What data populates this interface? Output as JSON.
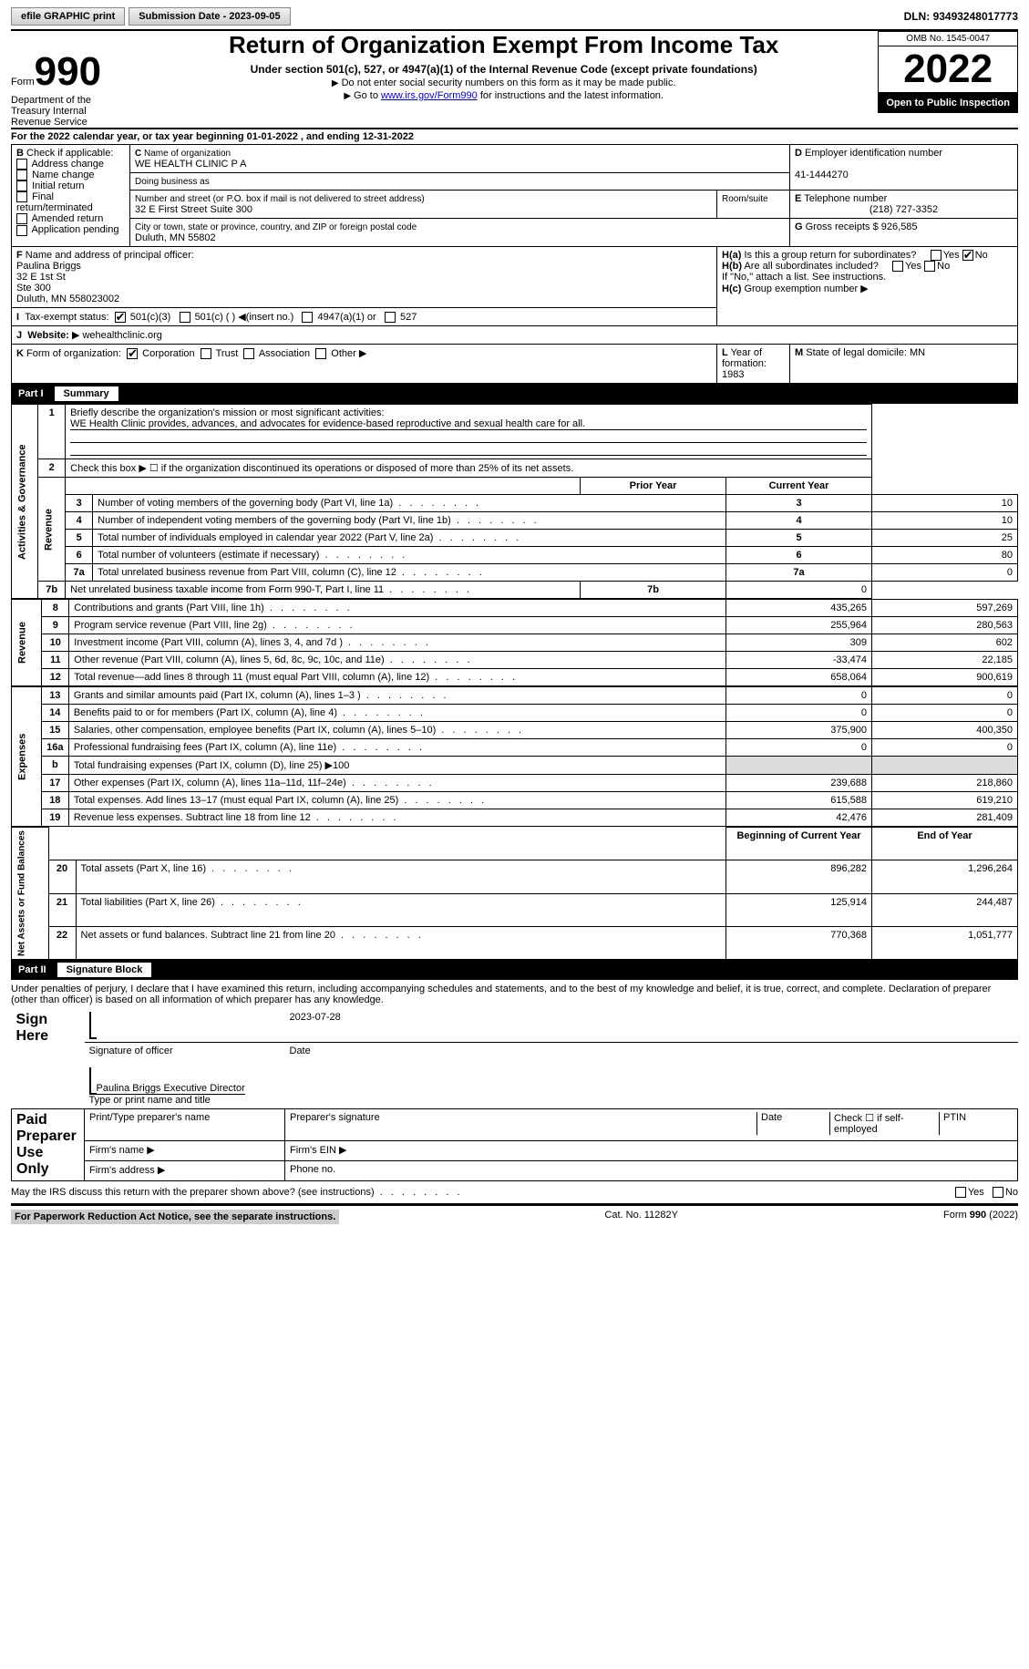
{
  "topbar": {
    "efile": "efile GRAPHIC print",
    "sub_label": "Submission Date - ",
    "sub_date": "2023-09-05",
    "dln_label": "DLN: ",
    "dln": "93493248017773"
  },
  "header": {
    "form_prefix": "Form",
    "form_num": "990",
    "title": "Return of Organization Exempt From Income Tax",
    "subtitle": "Under section 501(c), 527, or 4947(a)(1) of the Internal Revenue Code (except private foundations)",
    "note1": "Do not enter social security numbers on this form as it may be made public.",
    "note2_pre": "Go to ",
    "note2_link": "www.irs.gov/Form990",
    "note2_post": " for instructions and the latest information.",
    "omb": "OMB No. 1545-0047",
    "year": "2022",
    "open": "Open to Public Inspection",
    "dept": "Department of the Treasury Internal Revenue Service"
  },
  "sectionA": {
    "line": "For the 2022 calendar year, or tax year beginning 01-01-2022  , and ending 12-31-2022",
    "b_label": "Check if applicable:",
    "b_opts": [
      "Address change",
      "Name change",
      "Initial return",
      "Final return/terminated",
      "Amended return",
      "Application pending"
    ],
    "c_label": "Name of organization",
    "c_name": "WE HEALTH CLINIC P A",
    "dba": "Doing business as",
    "addr_label": "Number and street (or P.O. box if mail is not delivered to street address)",
    "addr": "32 E First Street Suite 300",
    "room": "Room/suite",
    "city_label": "City or town, state or province, country, and ZIP or foreign postal code",
    "city": "Duluth, MN  55802",
    "d_label": "Employer identification number",
    "d_val": "41-1444270",
    "e_label": "Telephone number",
    "e_val": "(218) 727-3352",
    "g_label": "Gross receipts $",
    "g_val": "926,585",
    "f_label": "Name and address of principal officer:",
    "f_name": "Paulina Briggs",
    "f_addr": "32 E 1st St\nSte 300\nDuluth, MN  558023002",
    "ha": "Is this a group return for subordinates?",
    "hb": "Are all subordinates included?",
    "h_note": "If \"No,\" attach a list. See instructions.",
    "hc": "Group exemption number",
    "i_label": "Tax-exempt status:",
    "i_501c3": "501(c)(3)",
    "i_501c": "501(c) (  )",
    "i_insert": "(insert no.)",
    "i_4947": "4947(a)(1) or",
    "i_527": "527",
    "j_label": "Website:",
    "j_val": "wehealthclinic.org",
    "k_label": "Form of organization:",
    "k_corp": "Corporation",
    "k_trust": "Trust",
    "k_assoc": "Association",
    "k_other": "Other",
    "l_label": "Year of formation:",
    "l_val": "1983",
    "m_label": "State of legal domicile:",
    "m_val": "MN"
  },
  "part1": {
    "hdr": "Part I",
    "title": "Summary",
    "q1": "Briefly describe the organization's mission or most significant activities:",
    "mission": "WE Health Clinic provides, advances, and advocates for evidence-based reproductive and sexual health care for all.",
    "q2": "Check this box ▶ ☐ if the organization discontinued its operations or disposed of more than 25% of its net assets.",
    "rows_gov": [
      {
        "n": "3",
        "t": "Number of voting members of the governing body (Part VI, line 1a)",
        "v": "10"
      },
      {
        "n": "4",
        "t": "Number of independent voting members of the governing body (Part VI, line 1b)",
        "v": "10"
      },
      {
        "n": "5",
        "t": "Total number of individuals employed in calendar year 2022 (Part V, line 2a)",
        "v": "25"
      },
      {
        "n": "6",
        "t": "Total number of volunteers (estimate if necessary)",
        "v": "80"
      },
      {
        "n": "7a",
        "t": "Total unrelated business revenue from Part VIII, column (C), line 12",
        "v": "0"
      },
      {
        "n": "7b",
        "t": "Net unrelated business taxable income from Form 990-T, Part I, line 11",
        "v": "0"
      }
    ],
    "col_prior": "Prior Year",
    "col_curr": "Current Year",
    "rows_rev": [
      {
        "n": "8",
        "t": "Contributions and grants (Part VIII, line 1h)",
        "p": "435,265",
        "c": "597,269"
      },
      {
        "n": "9",
        "t": "Program service revenue (Part VIII, line 2g)",
        "p": "255,964",
        "c": "280,563"
      },
      {
        "n": "10",
        "t": "Investment income (Part VIII, column (A), lines 3, 4, and 7d )",
        "p": "309",
        "c": "602"
      },
      {
        "n": "11",
        "t": "Other revenue (Part VIII, column (A), lines 5, 6d, 8c, 9c, 10c, and 11e)",
        "p": "-33,474",
        "c": "22,185"
      },
      {
        "n": "12",
        "t": "Total revenue—add lines 8 through 11 (must equal Part VIII, column (A), line 12)",
        "p": "658,064",
        "c": "900,619"
      }
    ],
    "rows_exp": [
      {
        "n": "13",
        "t": "Grants and similar amounts paid (Part IX, column (A), lines 1–3 )",
        "p": "0",
        "c": "0"
      },
      {
        "n": "14",
        "t": "Benefits paid to or for members (Part IX, column (A), line 4)",
        "p": "0",
        "c": "0"
      },
      {
        "n": "15",
        "t": "Salaries, other compensation, employee benefits (Part IX, column (A), lines 5–10)",
        "p": "375,900",
        "c": "400,350"
      },
      {
        "n": "16a",
        "t": "Professional fundraising fees (Part IX, column (A), line 11e)",
        "p": "0",
        "c": "0"
      }
    ],
    "row_16b": "Total fundraising expenses (Part IX, column (D), line 25) ▶100",
    "rows_exp2": [
      {
        "n": "17",
        "t": "Other expenses (Part IX, column (A), lines 11a–11d, 11f–24e)",
        "p": "239,688",
        "c": "218,860"
      },
      {
        "n": "18",
        "t": "Total expenses. Add lines 13–17 (must equal Part IX, column (A), line 25)",
        "p": "615,588",
        "c": "619,210"
      },
      {
        "n": "19",
        "t": "Revenue less expenses. Subtract line 18 from line 12",
        "p": "42,476",
        "c": "281,409"
      }
    ],
    "col_beg": "Beginning of Current Year",
    "col_end": "End of Year",
    "rows_net": [
      {
        "n": "20",
        "t": "Total assets (Part X, line 16)",
        "p": "896,282",
        "c": "1,296,264"
      },
      {
        "n": "21",
        "t": "Total liabilities (Part X, line 26)",
        "p": "125,914",
        "c": "244,487"
      },
      {
        "n": "22",
        "t": "Net assets or fund balances. Subtract line 21 from line 20",
        "p": "770,368",
        "c": "1,051,777"
      }
    ],
    "side_gov": "Activities & Governance",
    "side_rev": "Revenue",
    "side_exp": "Expenses",
    "side_net": "Net Assets or Fund Balances"
  },
  "part2": {
    "hdr": "Part II",
    "title": "Signature Block",
    "decl": "Under penalties of perjury, I declare that I have examined this return, including accompanying schedules and statements, and to the best of my knowledge and belief, it is true, correct, and complete. Declaration of preparer (other than officer) is based on all information of which preparer has any knowledge.",
    "sign_here": "Sign Here",
    "sig_officer": "Signature of officer",
    "sig_date": "Date",
    "sig_date_v": "2023-07-28",
    "sig_name": "Paulina Briggs  Executive Director",
    "sig_name_lbl": "Type or print name and title",
    "paid": "Paid Preparer Use Only",
    "prep_name": "Print/Type preparer's name",
    "prep_sig": "Preparer's signature",
    "prep_date": "Date",
    "prep_self": "Check ☐ if self-employed",
    "ptin": "PTIN",
    "firm_name": "Firm's name  ▶",
    "firm_ein": "Firm's EIN ▶",
    "firm_addr": "Firm's address ▶",
    "phone": "Phone no.",
    "discuss": "May the IRS discuss this return with the preparer shown above? (see instructions)",
    "yes": "Yes",
    "no": "No"
  },
  "footer": {
    "pra": "For Paperwork Reduction Act Notice, see the separate instructions.",
    "cat": "Cat. No. 11282Y",
    "form": "Form 990 (2022)"
  }
}
